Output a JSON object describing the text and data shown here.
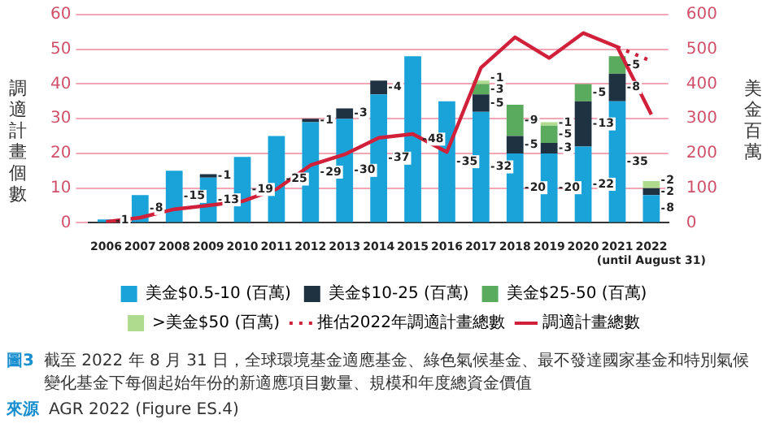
{
  "chart_data": {
    "type": "bar",
    "stacked": true,
    "grid": "y",
    "legend": "bottom",
    "marker": "none",
    "ylabel": "調適計畫個數",
    "y2label": "美金百萬",
    "categories": [
      "2006",
      "2007",
      "2008",
      "2009",
      "2010",
      "2011",
      "2012",
      "2013",
      "2014",
      "2015",
      "2016",
      "2017",
      "2018",
      "2019",
      "2020",
      "2021",
      "2022\n(until August 31)"
    ],
    "ylim": [
      0,
      60
    ],
    "yticks": [
      0,
      10,
      20,
      30,
      40,
      50,
      60
    ],
    "y2lim": [
      0,
      600
    ],
    "y2ticks": [
      0,
      100,
      200,
      300,
      400,
      500,
      600
    ],
    "series": [
      {
        "name": "美金$0.5-10 (百萬)",
        "color": "#1aa3d9",
        "values": [
          1,
          8,
          15,
          13,
          19,
          25,
          29,
          30,
          37,
          48,
          35,
          32,
          20,
          20,
          22,
          35,
          8
        ],
        "value_labels": [
          "1",
          "8",
          "15",
          "13",
          "19",
          "25",
          "29",
          "30",
          "37",
          "48",
          "35",
          "32",
          "20",
          "20",
          "22",
          "35",
          "8"
        ]
      },
      {
        "name": "美金$10-25 (百萬)",
        "color": "#1e3242",
        "values": [
          null,
          null,
          null,
          1,
          null,
          null,
          1,
          3,
          4,
          null,
          null,
          5,
          5,
          3,
          13,
          8,
          2
        ],
        "value_labels": [
          null,
          null,
          null,
          "1",
          null,
          null,
          "1",
          "3",
          "4",
          null,
          null,
          "5",
          "5",
          "3",
          "13",
          "8",
          "2"
        ]
      },
      {
        "name": "美金$25-50 (百萬)",
        "color": "#5bab5e",
        "values": [
          null,
          null,
          null,
          null,
          null,
          null,
          null,
          null,
          null,
          null,
          null,
          3,
          9,
          5,
          5,
          5,
          null
        ],
        "value_labels": [
          null,
          null,
          null,
          null,
          null,
          null,
          null,
          null,
          null,
          null,
          null,
          "3",
          "9",
          "5",
          "5",
          "5",
          null
        ]
      },
      {
        "name": ">美金$50 (百萬)",
        "color": "#aedb8e",
        "values": [
          null,
          null,
          null,
          null,
          null,
          null,
          null,
          null,
          null,
          null,
          null,
          1,
          null,
          1,
          null,
          null,
          2
        ],
        "value_labels": [
          null,
          null,
          null,
          null,
          null,
          null,
          null,
          null,
          null,
          null,
          null,
          "1",
          null,
          "1",
          null,
          null,
          "2"
        ]
      },
      {
        "name": "推估2022年調適計畫總數",
        "type": "line",
        "axis": "y2",
        "line_style": "dotted",
        "color": "#d0203a",
        "values": [
          null,
          null,
          null,
          null,
          null,
          null,
          null,
          null,
          null,
          null,
          null,
          null,
          null,
          null,
          null,
          507,
          466
        ]
      },
      {
        "name": "調適計畫總數",
        "type": "line",
        "axis": "y2",
        "line_style": "solid",
        "color": "#d0203a",
        "values": [
          3,
          15,
          39,
          50,
          62,
          97,
          166,
          197,
          245,
          256,
          204,
          447,
          535,
          475,
          547,
          507,
          312
        ]
      }
    ],
    "annotations": [
      "圖3",
      "截至 2022 年 8 月 31 日，全球環境基金適應基金、綠色氣候基金、最不發達國家基金和特別氣候變化基金下每個起始年份的新適應項目數量、規模和年度總資金價值",
      "來源",
      "AGR 2022 (Figure ES.4)"
    ]
  }
}
